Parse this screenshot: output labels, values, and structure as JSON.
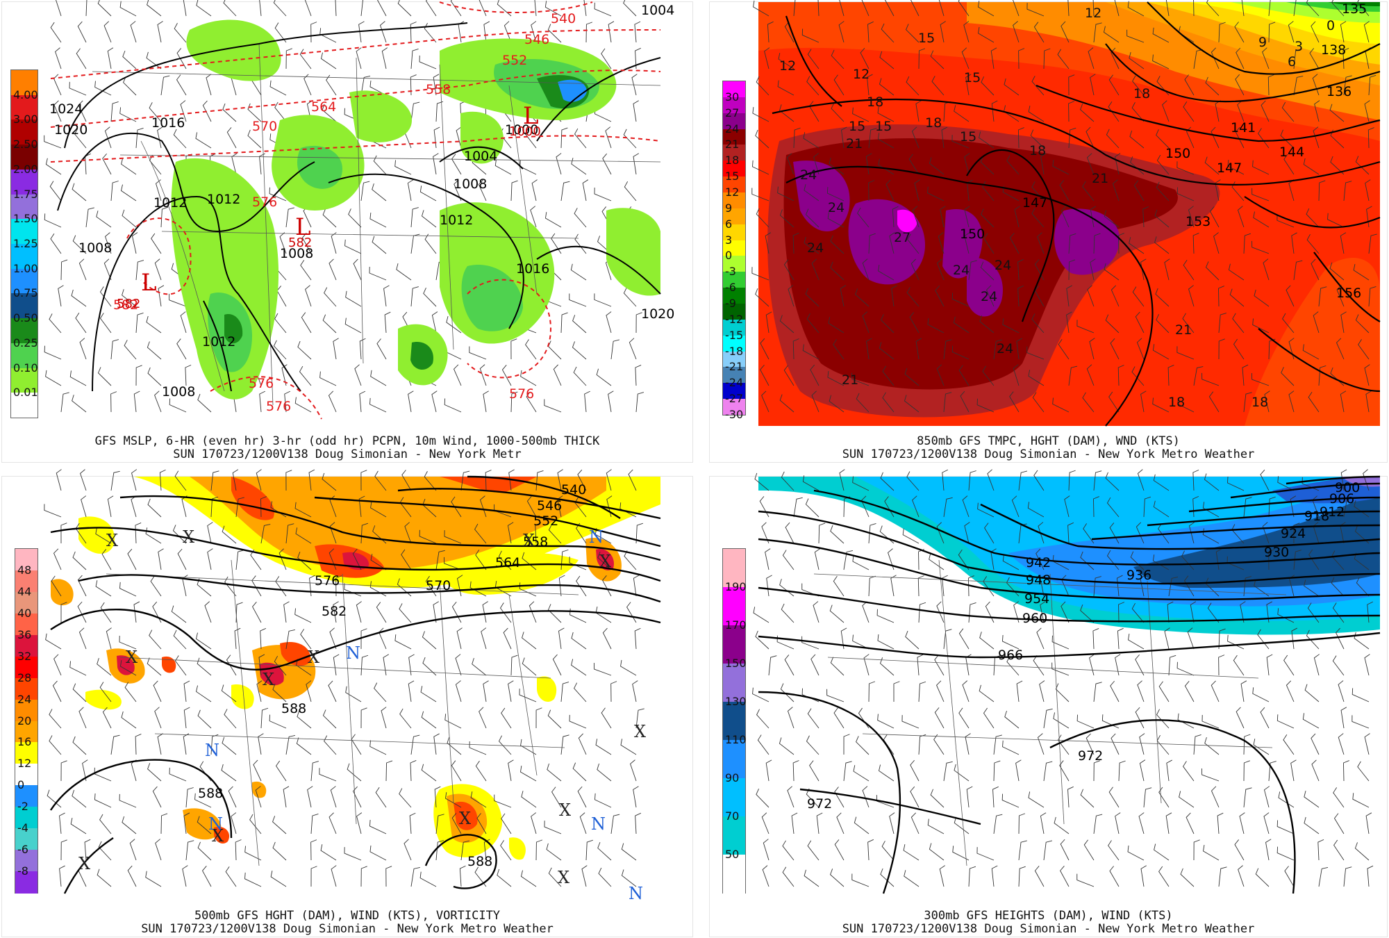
{
  "panels": [
    {
      "id": "p1",
      "caption1": "GFS MSLP, 6-HR (even hr) 3-hr (odd hr) PCPN, 10m Wind, 1000-500mb THICK",
      "caption2": "SUN 170723/1200V138 Doug Simonian - New York Metr",
      "colorbar": {
        "labels": [
          "4.00",
          "3.00",
          "2.50",
          "2.00",
          "1.75",
          "1.50",
          "1.25",
          "1.00",
          "0.75",
          "0.50",
          "0.25",
          "0.10",
          "0.01"
        ],
        "colors": [
          "#ff7f00",
          "#e31a1c",
          "#b00000",
          "#7a0000",
          "#8a2be2",
          "#9370db",
          "#00e5ee",
          "#00bfff",
          "#1e90ff",
          "#104e8b",
          "#1a8a1a",
          "#4fd24f",
          "#90ee30",
          "#ffffff"
        ]
      },
      "isobar_labels": [
        "1016",
        "1020",
        "1012",
        "1012",
        "1008",
        "1008",
        "1004",
        "1008",
        "1012",
        "1016",
        "1012",
        "1008",
        "1000",
        "1024",
        "1004",
        "1020"
      ],
      "thickness_labels": [
        "546",
        "552",
        "558",
        "564",
        "570",
        "576",
        "576",
        "576",
        "582",
        "576",
        "540"
      ],
      "low_labels": [
        "L",
        "L",
        "L"
      ],
      "low_values": [
        "1000",
        "582",
        "582"
      ]
    },
    {
      "id": "p2",
      "caption1": "850mb GFS TMPC, HGHT (DAM), WND (KTS)",
      "caption2": "SUN 170723/1200V138 Doug Simonian - New York Metro Weather",
      "colorbar": {
        "labels": [
          "30",
          "27",
          "24",
          "21",
          "18",
          "15",
          "12",
          "9",
          "6",
          "3",
          "0",
          "-3",
          "-6",
          "-9",
          "-12",
          "-15",
          "-18",
          "-21",
          "-24",
          "-27",
          "-30"
        ],
        "colors": [
          "#ff00ff",
          "#c000c0",
          "#8b008b",
          "#8b0000",
          "#b22222",
          "#ff0000",
          "#ff4500",
          "#ff8c00",
          "#ffa500",
          "#ffd700",
          "#ffff00",
          "#adff2f",
          "#32cd32",
          "#008000",
          "#006400",
          "#00ced1",
          "#00ffff",
          "#87cefa",
          "#4682b4",
          "#0000cd",
          "#ee82ee"
        ]
      },
      "height_labels": [
        "135",
        "138",
        "136",
        "141",
        "144",
        "147",
        "150",
        "153",
        "156",
        "150",
        "147"
      ],
      "temp_labels": [
        "12",
        "15",
        "12",
        "15",
        "18",
        "15",
        "15",
        "18",
        "21",
        "24",
        "24",
        "27",
        "24",
        "24",
        "24",
        "24",
        "24",
        "21",
        "21",
        "18",
        "18",
        "18",
        "9",
        "6",
        "3",
        "0",
        "21",
        "18",
        "15",
        "12"
      ]
    },
    {
      "id": "p3",
      "caption1": "500mb GFS HGHT (DAM), WIND (KTS), VORTICITY",
      "caption2": "SUN 170723/1200V138 Doug Simonian - New York Metro Weather",
      "colorbar": {
        "labels": [
          "48",
          "44",
          "40",
          "36",
          "32",
          "28",
          "24",
          "20",
          "16",
          "12",
          "0",
          "-2",
          "-4",
          "-6",
          "-8"
        ],
        "colors": [
          "#ffb6c1",
          "#fa8072",
          "#e9967a",
          "#ff6347",
          "#dc143c",
          "#ff0000",
          "#ff4500",
          "#ff8c00",
          "#ffa500",
          "#ffff00",
          "#ffffff",
          "#1e90ff",
          "#00ced1",
          "#48d1cc",
          "#9370db",
          "#8a2be2"
        ]
      },
      "height_labels": [
        "540",
        "546",
        "552",
        "558",
        "564",
        "570",
        "576",
        "582",
        "588",
        "588",
        "588"
      ],
      "max_labels": [
        "X",
        "X",
        "X",
        "X",
        "X",
        "X",
        "X",
        "X",
        "X",
        "X",
        "X",
        "X",
        "X"
      ],
      "min_labels": [
        "N",
        "N",
        "N",
        "N",
        "N",
        "N"
      ]
    },
    {
      "id": "p4",
      "caption1": "300mb GFS HEIGHTS (DAM), WIND (KTS)",
      "caption2": "SUN 170723/1200V138 Doug Simonian - New York Metro Weather",
      "colorbar": {
        "labels": [
          "190",
          "170",
          "150",
          "130",
          "110",
          "90",
          "70",
          "50"
        ],
        "colors": [
          "#ffb6c1",
          "#ff00ff",
          "#8b008b",
          "#9370db",
          "#104e8b",
          "#1e90ff",
          "#00bfff",
          "#00ced1",
          "#ffffff"
        ]
      },
      "height_labels": [
        "900",
        "906",
        "912",
        "918",
        "924",
        "930",
        "936",
        "942",
        "948",
        "954",
        "960",
        "966",
        "972",
        "972"
      ]
    }
  ]
}
